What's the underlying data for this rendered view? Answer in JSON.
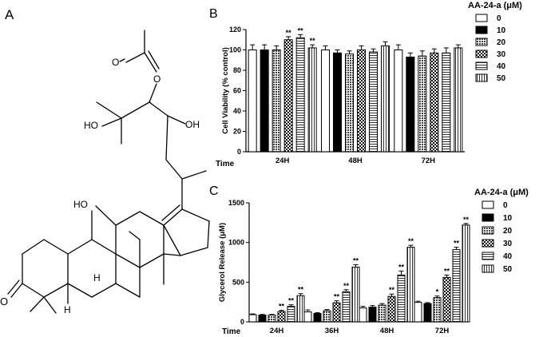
{
  "panels": {
    "a": {
      "letter": "A",
      "atoms": {
        "o_ester": "O",
        "o_carbonyl": "O",
        "ho_tert": "HO",
        "oh_sec": "OH",
        "ho_ring": "HO",
        "h_9": "H",
        "h_5": "H",
        "o_ketone": "O"
      }
    },
    "b": {
      "letter": "B"
    },
    "c": {
      "letter": "C"
    }
  },
  "chart_data": [
    {
      "type": "bar",
      "panel": "B",
      "categories": [
        "24H",
        "48H",
        "72H"
      ],
      "xlabel": "Time",
      "ylabel": "Cell Viability (% control)",
      "ylim": [
        0,
        120
      ],
      "yticks": [
        "0",
        "20",
        "40",
        "60",
        "80",
        "100",
        "120"
      ],
      "legend_title": "AA-24-a (μM)",
      "legend_position": "top-right",
      "series": [
        {
          "name": "0",
          "pattern": "white",
          "values": [
            100,
            100,
            100
          ],
          "errors": [
            5,
            4,
            5
          ],
          "sig": [
            "",
            "",
            ""
          ]
        },
        {
          "name": "10",
          "pattern": "black",
          "values": [
            100,
            97,
            93
          ],
          "errors": [
            5,
            3,
            4
          ],
          "sig": [
            "",
            "",
            ""
          ]
        },
        {
          "name": "20",
          "pattern": "dots",
          "values": [
            100,
            96,
            94
          ],
          "errors": [
            4,
            3,
            5
          ],
          "sig": [
            "",
            "",
            ""
          ]
        },
        {
          "name": "30",
          "pattern": "checker",
          "values": [
            110,
            100,
            97
          ],
          "errors": [
            3,
            4,
            4
          ],
          "sig": [
            "**",
            "",
            ""
          ]
        },
        {
          "name": "40",
          "pattern": "hlines",
          "values": [
            112,
            98,
            97
          ],
          "errors": [
            3,
            3,
            5
          ],
          "sig": [
            "**",
            "",
            ""
          ]
        },
        {
          "name": "50",
          "pattern": "vlines",
          "values": [
            102,
            104,
            102
          ],
          "errors": [
            3,
            4,
            3
          ],
          "sig": [
            "**",
            "",
            ""
          ]
        }
      ]
    },
    {
      "type": "bar",
      "panel": "C",
      "categories": [
        "24H",
        "36H",
        "48H",
        "72H"
      ],
      "xlabel": "Time",
      "ylabel": "Glycerol Release (μM)",
      "ylim": [
        0,
        1500
      ],
      "yticks": [
        "0",
        "500",
        "1000",
        "1500"
      ],
      "legend_title": "AA-24-a (μM)",
      "legend_position": "top-right",
      "series": [
        {
          "name": "0",
          "pattern": "white",
          "values": [
            90,
            125,
            175,
            245
          ],
          "errors": [
            10,
            25,
            20,
            15
          ],
          "sig": [
            "",
            "",
            "",
            ""
          ]
        },
        {
          "name": "10",
          "pattern": "black",
          "values": [
            85,
            105,
            185,
            230
          ],
          "errors": [
            8,
            10,
            20,
            12
          ],
          "sig": [
            "",
            "",
            "",
            ""
          ]
        },
        {
          "name": "20",
          "pattern": "dots",
          "values": [
            85,
            140,
            210,
            305
          ],
          "errors": [
            8,
            15,
            20,
            20
          ],
          "sig": [
            "",
            "",
            "",
            "*"
          ]
        },
        {
          "name": "30",
          "pattern": "checker",
          "values": [
            130,
            240,
            320,
            560
          ],
          "errors": [
            15,
            25,
            30,
            30
          ],
          "sig": [
            "**",
            "**",
            "**",
            "**"
          ]
        },
        {
          "name": "40",
          "pattern": "hlines",
          "values": [
            195,
            380,
            590,
            910
          ],
          "errors": [
            20,
            25,
            50,
            30
          ],
          "sig": [
            "**",
            "**",
            "**",
            "**"
          ]
        },
        {
          "name": "50",
          "pattern": "vlines",
          "values": [
            330,
            690,
            940,
            1220
          ],
          "errors": [
            25,
            30,
            25,
            20
          ],
          "sig": [
            "**",
            "**",
            "**",
            "**"
          ]
        }
      ]
    }
  ]
}
